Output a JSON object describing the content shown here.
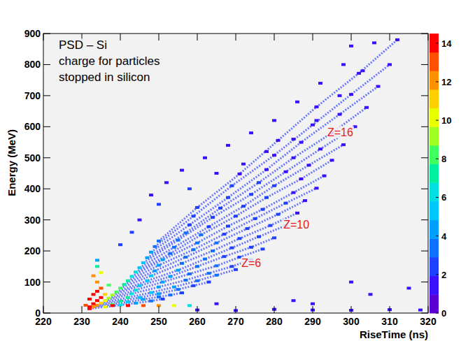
{
  "chart_data": {
    "type": "scatter",
    "xlabel": "RiseTime (ns)",
    "ylabel": "Energy (MeV)",
    "xlim": [
      220,
      320
    ],
    "xticks": [
      220,
      230,
      240,
      250,
      260,
      270,
      280,
      290,
      300,
      310,
      320
    ],
    "ylim": [
      0,
      900
    ],
    "yticks": [
      0,
      100,
      200,
      300,
      400,
      500,
      600,
      700,
      800,
      900
    ],
    "grid": false,
    "colorbar": {
      "range": [
        0,
        14.5
      ],
      "ticks": [
        0,
        2,
        4,
        6,
        8,
        10,
        12,
        14
      ]
    },
    "annotations": [
      {
        "text": "PSD – Si",
        "x": 224,
        "y": 850
      },
      {
        "text": "charge for particles",
        "x": 224,
        "y": 798
      },
      {
        "text": "stopped in silicon",
        "x": 224,
        "y": 746
      },
      {
        "text": "Z=6",
        "x": 271.5,
        "y": 148
      },
      {
        "text": "Z=10",
        "x": 282.4,
        "y": 272
      },
      {
        "text": "Z=16",
        "x": 293.8,
        "y": 570
      }
    ],
    "series": [
      {
        "color": "#3a4cff",
        "marker": "square",
        "line_style": "dotted",
        "x": [
          232,
          236,
          240,
          244,
          248,
          251
        ],
        "y": [
          14,
          20,
          26,
          32,
          39,
          45
        ],
        "counts": [
          14,
          10,
          6,
          4,
          3,
          2
        ]
      },
      {
        "color": "#3a4cff",
        "marker": "square",
        "line_style": "dotted",
        "x": [
          233,
          238,
          242,
          246,
          250,
          253,
          256
        ],
        "y": [
          20,
          28,
          36,
          44,
          52,
          58,
          65
        ],
        "counts": [
          12,
          8,
          5,
          4,
          3,
          3,
          2
        ]
      },
      {
        "color": "#3a4cff",
        "marker": "square",
        "line_style": "dotted",
        "x": [
          234,
          240,
          245,
          250,
          255,
          259,
          263
        ],
        "y": [
          25,
          38,
          50,
          62,
          76,
          88,
          100
        ],
        "counts": [
          12,
          7,
          5,
          4,
          3,
          2,
          2
        ]
      },
      {
        "color": "#3a4cff",
        "marker": "square",
        "line_style": "dotted",
        "x": [
          235,
          242,
          248,
          254,
          260,
          265,
          270
        ],
        "y": [
          32,
          50,
          66,
          84,
          104,
          122,
          140
        ],
        "counts": [
          11,
          7,
          5,
          4,
          3,
          3,
          2
        ]
      },
      {
        "color": "#3a4cff",
        "marker": "square",
        "line_style": "dotted",
        "x": [
          236,
          243,
          250,
          257,
          263,
          269,
          274
        ],
        "y": [
          40,
          62,
          84,
          106,
          128,
          150,
          172
        ],
        "counts": [
          10,
          6,
          4,
          3,
          3,
          2,
          2
        ]
      },
      {
        "color": "#3a4cff",
        "marker": "square",
        "line_style": "dotted",
        "x": [
          237,
          244,
          251,
          258,
          265,
          271,
          277
        ],
        "y": [
          48,
          74,
          100,
          126,
          152,
          180,
          206
        ],
        "counts": [
          9,
          6,
          4,
          3,
          3,
          2,
          2
        ]
      },
      {
        "color": "#3a4cff",
        "marker": "square",
        "line_style": "dotted",
        "x": [
          238,
          245,
          253,
          260,
          267,
          274,
          280
        ],
        "y": [
          58,
          88,
          118,
          150,
          182,
          212,
          242
        ],
        "counts": [
          9,
          5,
          4,
          3,
          2,
          2,
          2
        ]
      },
      {
        "color": "#3a4cff",
        "marker": "square",
        "line_style": "dotted",
        "x": [
          239,
          247,
          255,
          262,
          269,
          276,
          283
        ],
        "y": [
          68,
          104,
          138,
          174,
          210,
          246,
          282
        ],
        "counts": [
          8,
          5,
          4,
          3,
          2,
          2,
          2
        ]
      },
      {
        "color": "#3a4cff",
        "marker": "square",
        "line_style": "dotted",
        "x": [
          240,
          248,
          256,
          264,
          271,
          279,
          286
        ],
        "y": [
          80,
          120,
          160,
          200,
          240,
          282,
          322
        ],
        "counts": [
          8,
          5,
          3,
          3,
          2,
          2,
          1
        ]
      },
      {
        "color": "#3a4cff",
        "marker": "square",
        "line_style": "dotted",
        "x": [
          241,
          249,
          257,
          265,
          273,
          281,
          288
        ],
        "y": [
          92,
          136,
          180,
          226,
          272,
          318,
          362
        ],
        "counts": [
          7,
          4,
          3,
          3,
          2,
          2,
          1
        ]
      },
      {
        "color": "#3a4cff",
        "marker": "square",
        "line_style": "dotted",
        "x": [
          242,
          250,
          259,
          267,
          275,
          283,
          291
        ],
        "y": [
          104,
          154,
          204,
          254,
          304,
          354,
          402
        ],
        "counts": [
          7,
          4,
          3,
          2,
          2,
          2,
          1
        ]
      },
      {
        "color": "#3a4cff",
        "marker": "square",
        "line_style": "dotted",
        "x": [
          243,
          251,
          260,
          268,
          277,
          285,
          293
        ],
        "y": [
          118,
          172,
          226,
          280,
          334,
          388,
          442
        ],
        "counts": [
          6,
          4,
          3,
          2,
          2,
          1,
          1
        ]
      },
      {
        "color": "#3a4cff",
        "marker": "square",
        "line_style": "dotted",
        "x": [
          244,
          253,
          261,
          270,
          278,
          287,
          295
        ],
        "y": [
          132,
          192,
          252,
          312,
          372,
          432,
          492
        ],
        "counts": [
          6,
          3,
          3,
          2,
          2,
          1,
          1
        ]
      },
      {
        "color": "#3a4cff",
        "marker": "square",
        "line_style": "dotted",
        "x": [
          245,
          254,
          263,
          272,
          280,
          289,
          298
        ],
        "y": [
          146,
          212,
          278,
          344,
          410,
          476,
          542
        ],
        "counts": [
          5,
          3,
          2,
          2,
          2,
          1,
          1
        ]
      },
      {
        "color": "#3a4cff",
        "marker": "square",
        "line_style": "dotted",
        "x": [
          246,
          255,
          264,
          274,
          283,
          292,
          301
        ],
        "y": [
          162,
          235,
          308,
          382,
          455,
          528,
          600
        ],
        "counts": [
          5,
          3,
          2,
          2,
          1,
          1,
          1
        ]
      },
      {
        "color": "#3a4cff",
        "marker": "square",
        "line_style": "dotted",
        "x": [
          247,
          257,
          266,
          276,
          285,
          295,
          304
        ],
        "y": [
          178,
          258,
          338,
          420,
          500,
          580,
          662
        ],
        "counts": [
          4,
          3,
          2,
          2,
          1,
          1,
          1
        ]
      },
      {
        "color": "#3a4cff",
        "marker": "square",
        "line_style": "dotted",
        "x": [
          248,
          258,
          268,
          278,
          287,
          297,
          307
        ],
        "y": [
          196,
          284,
          372,
          462,
          550,
          640,
          730
        ],
        "counts": [
          4,
          2,
          2,
          1,
          1,
          1,
          1
        ]
      },
      {
        "color": "#3a4cff",
        "marker": "square",
        "line_style": "dotted",
        "x": [
          249,
          259,
          269,
          280,
          290,
          300,
          310
        ],
        "y": [
          214,
          312,
          410,
          508,
          606,
          704,
          800
        ],
        "counts": [
          3,
          2,
          2,
          1,
          1,
          1,
          1
        ]
      },
      {
        "color": "#3a4cff",
        "marker": "square",
        "line_style": "dotted",
        "x": [
          250,
          260,
          271,
          281,
          291,
          302,
          312
        ],
        "y": [
          232,
          340,
          448,
          556,
          664,
          772,
          880
        ],
        "counts": [
          3,
          2,
          1,
          1,
          1,
          1,
          1
        ]
      },
      {
        "marker": "square",
        "line_style": "none",
        "x": [
          240,
          243,
          245,
          248,
          250,
          252,
          256,
          258,
          262,
          265,
          268,
          272,
          274,
          278,
          280,
          285,
          286,
          291,
          292,
          297,
          298,
          300,
          303,
          306
        ],
        "y": [
          220,
          260,
          300,
          380,
          350,
          420,
          460,
          400,
          500,
          450,
          540,
          480,
          580,
          520,
          620,
          560,
          680,
          620,
          740,
          700,
          800,
          860,
          780,
          870
        ],
        "counts": [
          2,
          2,
          1,
          1,
          2,
          1,
          1,
          2,
          1,
          1,
          1,
          1,
          1,
          1,
          1,
          1,
          1,
          1,
          1,
          1,
          1,
          1,
          1,
          1
        ]
      },
      {
        "marker": "square",
        "line_style": "none",
        "x": [
          260,
          265,
          270,
          280,
          285,
          290,
          290,
          300,
          300,
          305,
          310,
          315,
          318
        ],
        "y": [
          10,
          30,
          8,
          12,
          40,
          10,
          30,
          9,
          100,
          60,
          11,
          80,
          10
        ],
        "counts": [
          1,
          1,
          1,
          1,
          1,
          1,
          1,
          1,
          1,
          1,
          1,
          1,
          1
        ]
      },
      {
        "marker": "square",
        "line_style": "none",
        "x": [
          232,
          233,
          234,
          235,
          233,
          234,
          235,
          234,
          233,
          235,
          236,
          234,
          232,
          231,
          237,
          234,
          238,
          242,
          246,
          250,
          254,
          258
        ],
        "y": [
          20,
          30,
          40,
          50,
          60,
          70,
          80,
          100,
          120,
          130,
          60,
          150,
          45,
          25,
          90,
          170,
          24,
          24,
          24,
          24,
          24,
          24
        ],
        "counts": [
          14,
          14,
          14,
          14,
          14,
          14,
          13,
          12,
          12,
          10,
          11,
          7,
          14,
          13,
          8,
          4,
          14,
          14,
          13,
          12,
          10,
          6
        ]
      }
    ]
  }
}
